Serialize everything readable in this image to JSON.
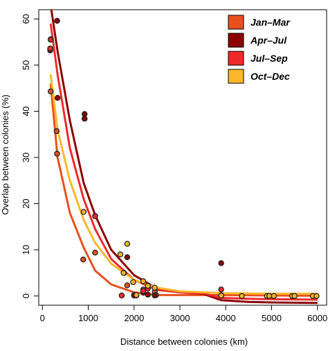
{
  "chart_data": {
    "type": "scatter",
    "xlabel": "Distance between colonies (km)",
    "ylabel": "Overlap between colonies (%)",
    "xlim": [
      -80,
      6200
    ],
    "ylim": [
      -2,
      62
    ],
    "xticks": [
      0,
      1000,
      2000,
      3000,
      4000,
      5000,
      6000
    ],
    "yticks": [
      0,
      10,
      20,
      30,
      40,
      50,
      60
    ],
    "grid": false,
    "legend_position": "top-right",
    "series": [
      {
        "name": "Jan–Mar",
        "color": "#e8501e",
        "points": [
          [
            180,
            44.3
          ],
          [
            310,
            35.7
          ],
          [
            320,
            30.8
          ],
          [
            890,
            7.9
          ],
          [
            1150,
            9.4
          ],
          [
            1780,
            5.0
          ],
          [
            1850,
            2.3
          ],
          [
            2000,
            0.2
          ],
          [
            2050,
            0.1
          ],
          [
            2200,
            1.4
          ],
          [
            2450,
            0.9
          ],
          [
            2480,
            0.2
          ]
        ],
        "curve": [
          [
            180,
            46
          ],
          [
            330,
            30
          ],
          [
            600,
            18
          ],
          [
            900,
            10.5
          ],
          [
            1150,
            5.5
          ],
          [
            1500,
            2.5
          ],
          [
            2000,
            0.8
          ],
          [
            2500,
            0.2
          ],
          [
            3000,
            0.2
          ],
          [
            3500,
            0.2
          ],
          [
            4000,
            0.2
          ],
          [
            5000,
            0.1
          ],
          [
            6000,
            0.05
          ]
        ]
      },
      {
        "name": "Apr–Jul",
        "color": "#8b0000",
        "points": [
          [
            170,
            53.2
          ],
          [
            180,
            55.6
          ],
          [
            320,
            59.6
          ],
          [
            330,
            42.9
          ],
          [
            920,
            39.4
          ],
          [
            920,
            38.4
          ],
          [
            1150,
            17.3
          ],
          [
            1850,
            8.4
          ],
          [
            2000,
            0.1
          ],
          [
            2200,
            0.7
          ],
          [
            2300,
            0.3
          ],
          [
            2450,
            0.1
          ],
          [
            3900,
            7.1
          ]
        ],
        "curve": [
          [
            180,
            63
          ],
          [
            330,
            53
          ],
          [
            600,
            38
          ],
          [
            900,
            24.5
          ],
          [
            1150,
            17.5
          ],
          [
            1500,
            10
          ],
          [
            2000,
            4.5
          ],
          [
            2500,
            1.6
          ],
          [
            3000,
            0.8
          ],
          [
            3500,
            0.5
          ],
          [
            3900,
            -0.9
          ],
          [
            4500,
            -1.3
          ],
          [
            5000,
            -1.4
          ],
          [
            6000,
            -1.5
          ]
        ]
      },
      {
        "name": "Jul–Sep",
        "color": "#ee2a2a",
        "points": [
          [
            170,
            53.6
          ],
          [
            180,
            55.5
          ],
          [
            1150,
            17.3
          ],
          [
            1730,
            0.1
          ],
          [
            2200,
            1.1
          ],
          [
            2300,
            1.6
          ],
          [
            3900,
            1.4
          ],
          [
            3900,
            0.1
          ]
        ],
        "curve": [
          [
            180,
            59
          ],
          [
            330,
            48
          ],
          [
            600,
            32
          ],
          [
            900,
            21
          ],
          [
            1150,
            14.5
          ],
          [
            1500,
            8
          ],
          [
            2000,
            3.5
          ],
          [
            2500,
            1.3
          ],
          [
            3000,
            0.8
          ],
          [
            3500,
            0.6
          ],
          [
            3900,
            -0.4
          ],
          [
            4500,
            -0.6
          ],
          [
            5000,
            -0.7
          ],
          [
            6000,
            -0.8
          ]
        ]
      },
      {
        "name": "Oct–Dec",
        "color": "#fbb82a",
        "points": [
          [
            900,
            18.2
          ],
          [
            1700,
            9.0
          ],
          [
            1770,
            5.0
          ],
          [
            1850,
            11.3
          ],
          [
            1980,
            3.0
          ],
          [
            2050,
            0.2
          ],
          [
            2200,
            3.2
          ],
          [
            2300,
            2.2
          ],
          [
            2450,
            1.8
          ],
          [
            3900,
            0.1
          ],
          [
            4350,
            0.0
          ],
          [
            4900,
            0.0
          ],
          [
            4950,
            0.0
          ],
          [
            5050,
            0.0
          ],
          [
            5450,
            0.0
          ],
          [
            5500,
            0.0
          ],
          [
            5900,
            0.0
          ],
          [
            5980,
            0.0
          ]
        ],
        "curve": [
          [
            180,
            48
          ],
          [
            330,
            36
          ],
          [
            600,
            25
          ],
          [
            900,
            16.5
          ],
          [
            1150,
            11.5
          ],
          [
            1500,
            7
          ],
          [
            2000,
            3.5
          ],
          [
            2500,
            1.8
          ],
          [
            3000,
            1.0
          ],
          [
            3500,
            0.8
          ],
          [
            4000,
            0.6
          ],
          [
            5000,
            0.5
          ],
          [
            6000,
            0.5
          ]
        ]
      }
    ]
  }
}
